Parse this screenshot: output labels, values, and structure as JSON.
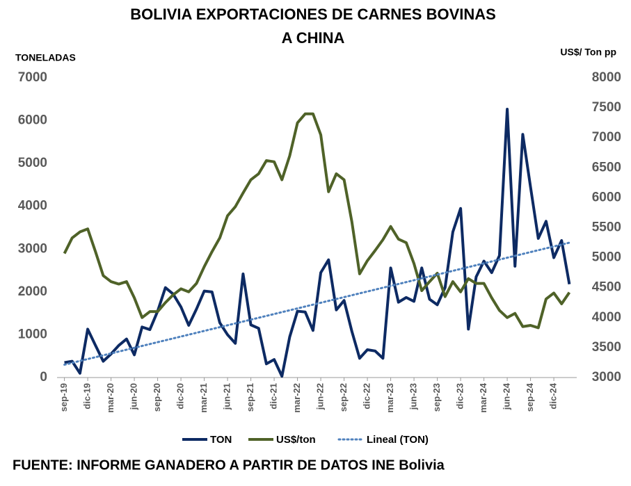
{
  "chart_data": {
    "type": "line",
    "title": [
      "BOLIVIA EXPORTACIONES DE CARNES BOVINAS",
      "A CHINA"
    ],
    "y_label": "TONELADAS",
    "y2_label": "US$/ Ton pp",
    "source": "FUENTE: INFORME GANADERO A PARTIR DE DATOS INE Bolivia",
    "categories": [
      "sep-19",
      null,
      null,
      "dic-19",
      null,
      null,
      "mar-20",
      null,
      null,
      "jun-20",
      null,
      null,
      "sep-20",
      null,
      null,
      "dic-20",
      null,
      null,
      "mar-21",
      null,
      null,
      "jun-21",
      null,
      null,
      "sep-21",
      null,
      null,
      "dic-21",
      null,
      null,
      "mar-22",
      null,
      null,
      "jun-22",
      null,
      null,
      "sep-22",
      null,
      null,
      "dic-22",
      null,
      null,
      "mar-23",
      null,
      null,
      "jun-23",
      null,
      null,
      "sep-23",
      null,
      null,
      "dic-23",
      null,
      null,
      "mar-24",
      null,
      null,
      "jun-24",
      null,
      null,
      "sep-24",
      null,
      null,
      "dic-24",
      null,
      null
    ],
    "series": [
      {
        "name": "TON",
        "color": "#0d2a63",
        "axis": "y",
        "values": [
          350,
          380,
          100,
          1130,
          750,
          380,
          550,
          750,
          900,
          530,
          1180,
          1120,
          1550,
          2100,
          1950,
          1650,
          1220,
          1600,
          2020,
          2000,
          1280,
          1000,
          800,
          2420,
          1230,
          1150,
          320,
          420,
          30,
          950,
          1550,
          1530,
          1100,
          2450,
          2750,
          1580,
          1800,
          1080,
          450,
          650,
          620,
          450,
          2560,
          1760,
          1870,
          1780,
          2560,
          1830,
          1700,
          2100,
          3400,
          3950,
          1130,
          2350,
          2720,
          2450,
          2850,
          6270,
          2600,
          5680,
          4450,
          3250,
          3650,
          2800,
          3200,
          2180
        ]
      },
      {
        "name": "US$/ton",
        "color": "#4f6228",
        "axis": "y2",
        "values": [
          5070,
          5330,
          5430,
          5480,
          5100,
          4700,
          4600,
          4560,
          4600,
          4330,
          4000,
          4100,
          4100,
          4250,
          4380,
          4480,
          4430,
          4570,
          4850,
          5100,
          5330,
          5700,
          5850,
          6080,
          6300,
          6400,
          6620,
          6600,
          6300,
          6700,
          7250,
          7400,
          7400,
          7050,
          6100,
          6400,
          6300,
          5600,
          4730,
          4950,
          5120,
          5300,
          5520,
          5310,
          5250,
          4900,
          4450,
          4600,
          4740,
          4350,
          4600,
          4430,
          4650,
          4570,
          4570,
          4330,
          4120,
          4000,
          4070,
          3850,
          3870,
          3830,
          4310,
          4410,
          4230,
          4420
        ]
      }
    ],
    "trend": {
      "name": "Lineal (TON)",
      "color": "#4f81bd",
      "values": [
        300,
        3150
      ]
    },
    "ylim": [
      0,
      7000
    ],
    "yticks": [
      0,
      1000,
      2000,
      3000,
      4000,
      5000,
      6000,
      7000
    ],
    "y2lim": [
      3000,
      8000
    ],
    "y2ticks": [
      3000,
      3500,
      4000,
      4500,
      5000,
      5500,
      6000,
      6500,
      7000,
      7500,
      8000
    ],
    "grid": false,
    "legend": "bottom"
  }
}
